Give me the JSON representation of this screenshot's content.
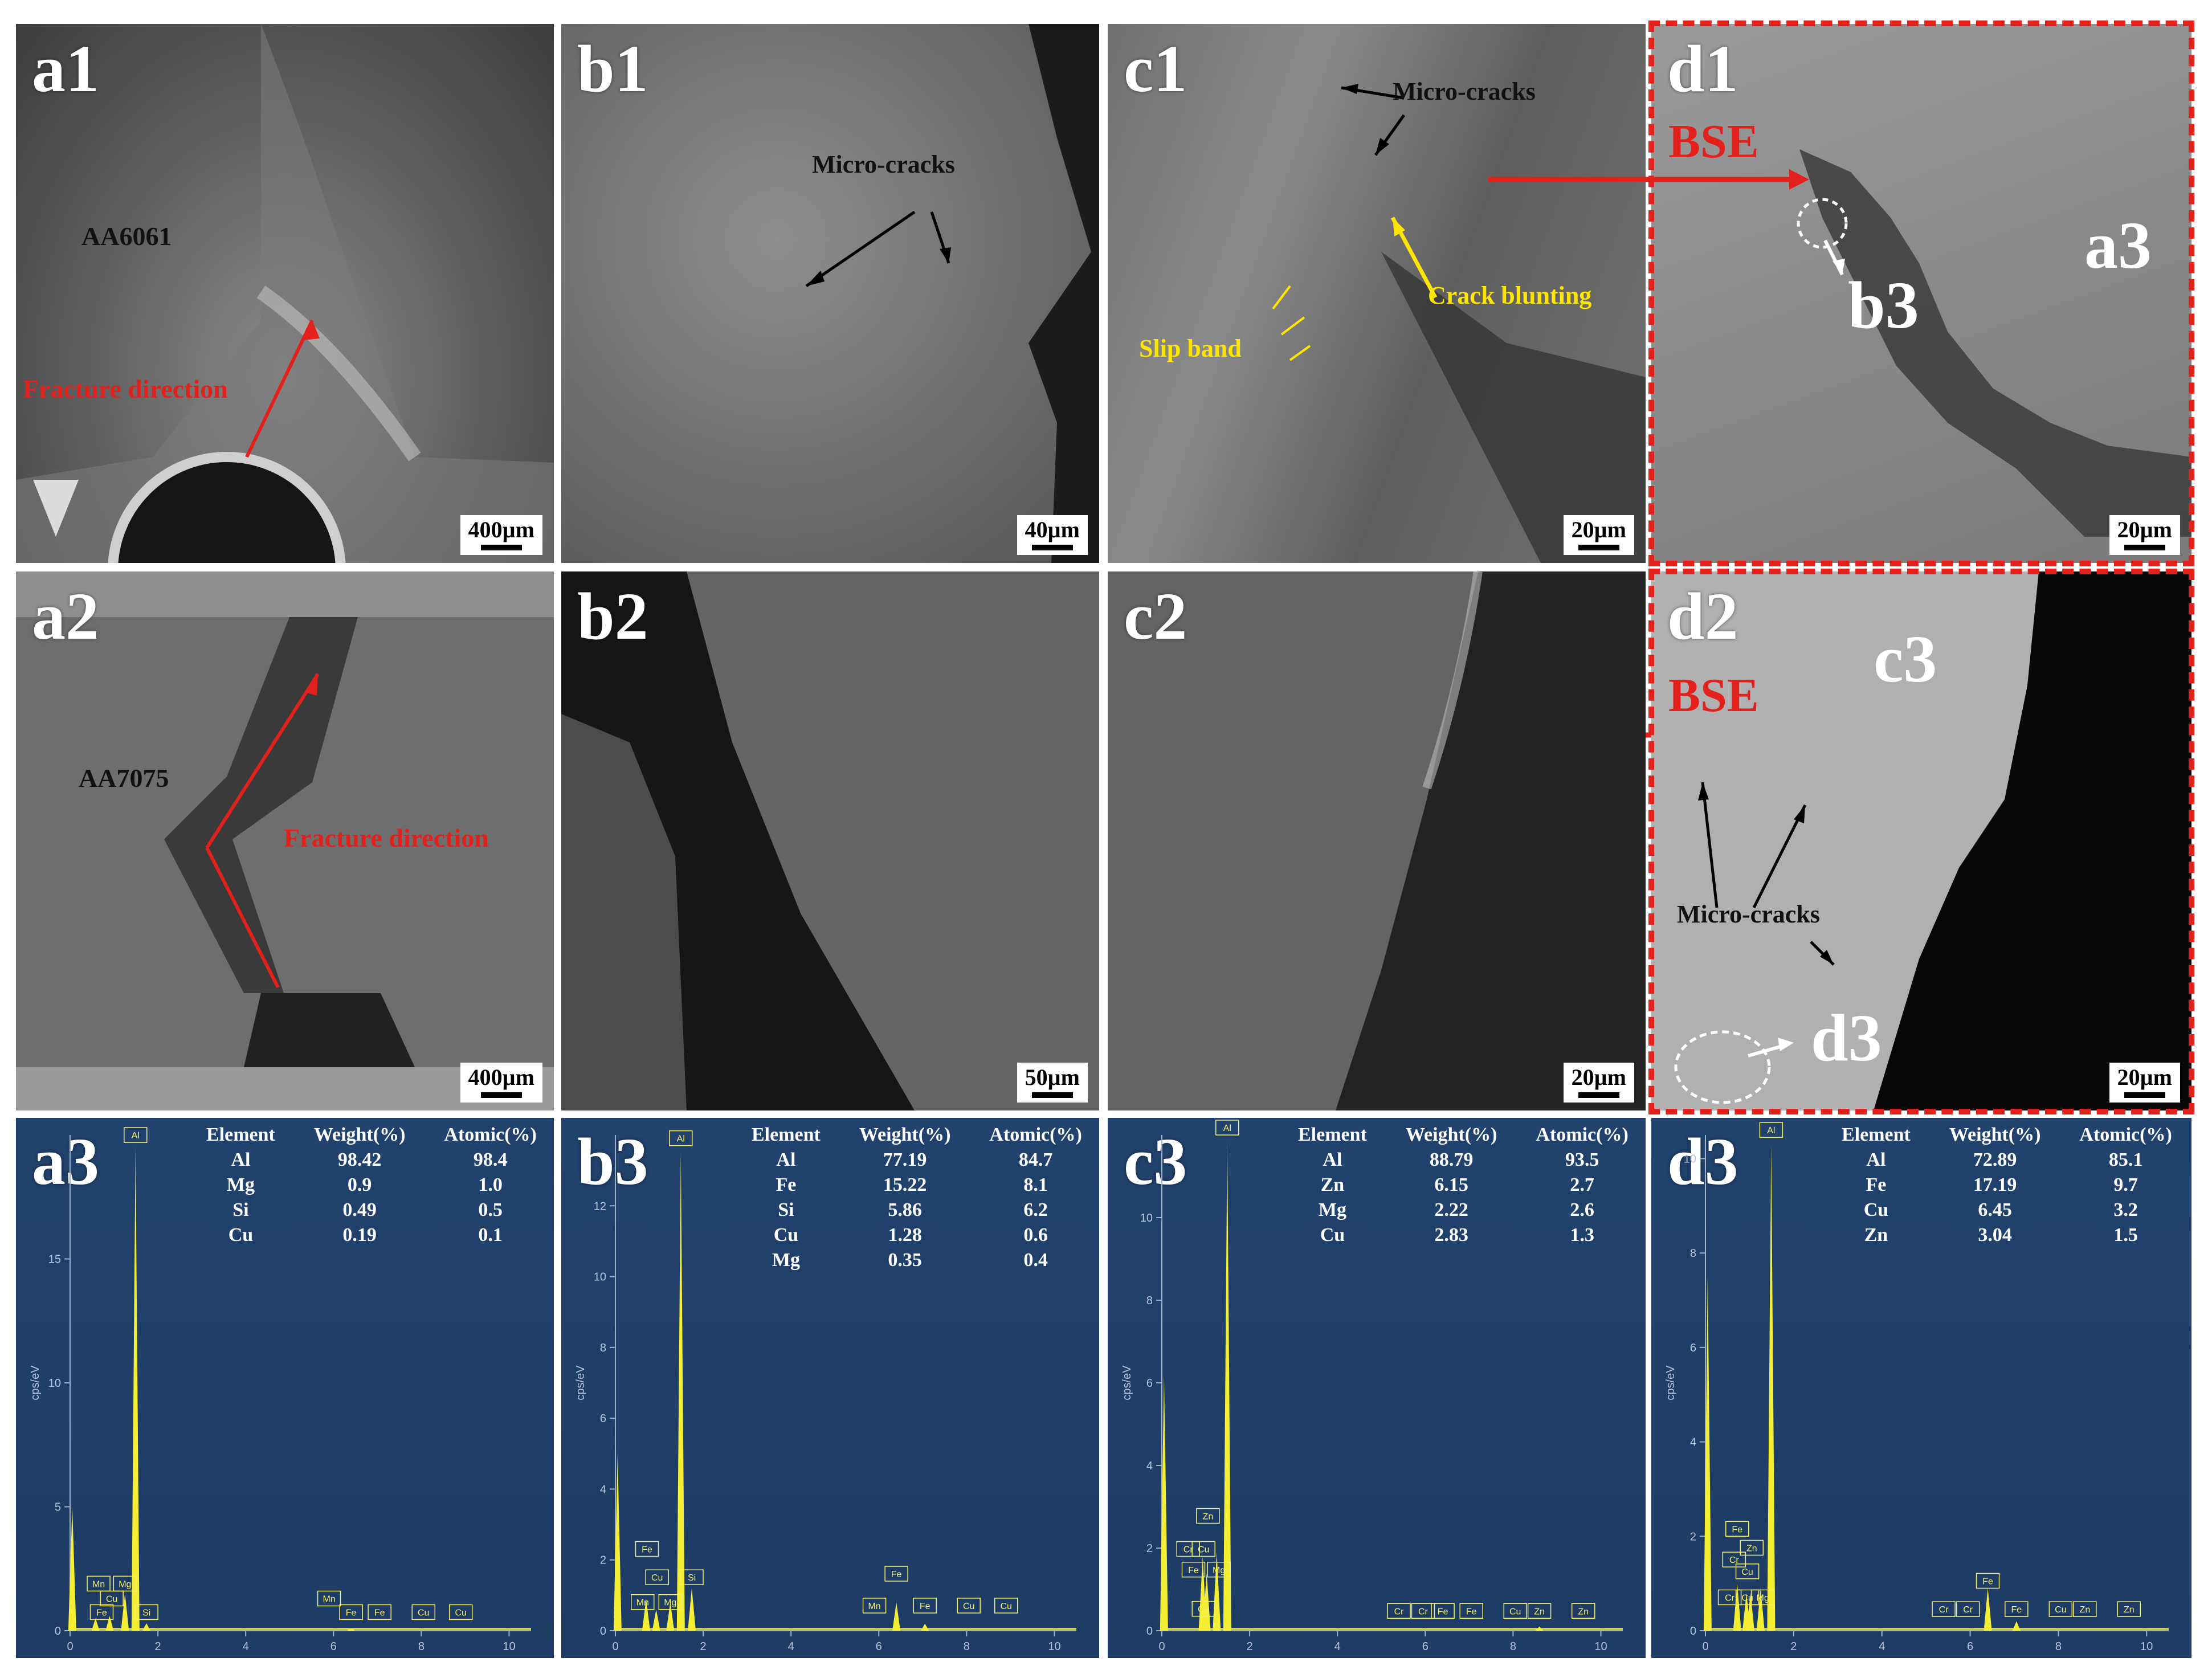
{
  "panels": {
    "a1": {
      "label": "a1",
      "scale": "400µm",
      "material": "AA6061",
      "fracture": "Fracture direction"
    },
    "b1": {
      "label": "b1",
      "scale": "40µm",
      "microcracks": "Micro-cracks"
    },
    "c1": {
      "label": "c1",
      "scale": "20µm",
      "microcracks": "Micro-cracks",
      "slip": "Slip band",
      "blunting": "Crack blunting"
    },
    "d1": {
      "label": "d1",
      "scale": "20µm",
      "bse": "BSE",
      "ref_a3": "a3",
      "ref_b3": "b3"
    },
    "a2": {
      "label": "a2",
      "scale": "400µm",
      "material": "AA7075",
      "fracture": "Fracture direction"
    },
    "b2": {
      "label": "b2",
      "scale": "50µm"
    },
    "c2": {
      "label": "c2",
      "scale": "20µm"
    },
    "d2": {
      "label": "d2",
      "scale": "20µm",
      "bse": "BSE",
      "ref_c3": "c3",
      "ref_d3": "d3",
      "microcracks": "Micro-cracks"
    }
  },
  "eds": [
    {
      "label": "a3",
      "headers": [
        "Element",
        "Weight(%)",
        "Atomic(%)"
      ],
      "rows": [
        [
          "Al",
          "98.42",
          "98.4"
        ],
        [
          "Mg",
          "0.9",
          "1.0"
        ],
        [
          "Si",
          "0.49",
          "0.5"
        ],
        [
          "Cu",
          "0.19",
          "0.1"
        ]
      ],
      "yticks": [
        "15",
        "10",
        "5",
        "0"
      ],
      "ymax": 20,
      "peaks": [
        {
          "x": 0.05,
          "y": 5.0
        },
        {
          "x": 0.58,
          "y": 0.5
        },
        {
          "x": 0.9,
          "y": 0.6
        },
        {
          "x": 1.25,
          "y": 1.5
        },
        {
          "x": 1.49,
          "y": 19.5
        },
        {
          "x": 1.74,
          "y": 0.3
        },
        {
          "x": 6.4,
          "y": 0.1
        }
      ],
      "tags": [
        {
          "t": "Al",
          "x": 1.49,
          "y": 19.7
        },
        {
          "t": "Mn",
          "x": 0.65,
          "y": 1.6
        },
        {
          "t": "Mg",
          "x": 1.25,
          "y": 1.6
        },
        {
          "t": "Cu",
          "x": 0.95,
          "y": 1.0
        },
        {
          "t": "Fe",
          "x": 0.72,
          "y": 0.45
        },
        {
          "t": "Si",
          "x": 1.74,
          "y": 0.45
        },
        {
          "t": "Mn",
          "x": 5.9,
          "y": 1.0
        },
        {
          "t": "Fe",
          "x": 6.4,
          "y": 0.45
        },
        {
          "t": "Fe",
          "x": 7.05,
          "y": 0.45
        },
        {
          "t": "Cu",
          "x": 8.05,
          "y": 0.45
        },
        {
          "t": "Cu",
          "x": 8.9,
          "y": 0.45
        }
      ]
    },
    {
      "label": "b3",
      "headers": [
        "Element",
        "Weight(%)",
        "Atomic(%)"
      ],
      "rows": [
        [
          "Al",
          "77.19",
          "84.7"
        ],
        [
          "Fe",
          "15.22",
          "8.1"
        ],
        [
          "Si",
          "5.86",
          "6.2"
        ],
        [
          "Cu",
          "1.28",
          "0.6"
        ],
        [
          "Mg",
          "0.35",
          "0.4"
        ]
      ],
      "yticks": [
        "12",
        "10",
        "8",
        "6",
        "4",
        "2",
        "0"
      ],
      "ymax": 14,
      "peaks": [
        {
          "x": 0.05,
          "y": 5.0
        },
        {
          "x": 0.7,
          "y": 0.9
        },
        {
          "x": 0.93,
          "y": 0.6
        },
        {
          "x": 1.25,
          "y": 0.8
        },
        {
          "x": 1.49,
          "y": 13.5
        },
        {
          "x": 1.74,
          "y": 1.2
        },
        {
          "x": 6.4,
          "y": 0.8
        },
        {
          "x": 7.05,
          "y": 0.2
        }
      ],
      "tags": [
        {
          "t": "Al",
          "x": 1.49,
          "y": 13.7
        },
        {
          "t": "Fe",
          "x": 0.72,
          "y": 2.1
        },
        {
          "t": "Cu",
          "x": 0.95,
          "y": 1.3
        },
        {
          "t": "Si",
          "x": 1.74,
          "y": 1.3
        },
        {
          "t": "Mn",
          "x": 0.62,
          "y": 0.6
        },
        {
          "t": "Mg",
          "x": 1.25,
          "y": 0.6
        },
        {
          "t": "Mn",
          "x": 5.9,
          "y": 0.5
        },
        {
          "t": "Fe",
          "x": 6.4,
          "y": 1.4
        },
        {
          "t": "Fe",
          "x": 7.05,
          "y": 0.5
        },
        {
          "t": "Cu",
          "x": 8.05,
          "y": 0.5
        },
        {
          "t": "Cu",
          "x": 8.9,
          "y": 0.5
        }
      ]
    },
    {
      "label": "c3",
      "headers": [
        "Element",
        "Weight(%)",
        "Atomic(%)"
      ],
      "rows": [
        [
          "Al",
          "88.79",
          "93.5"
        ],
        [
          "Zn",
          "6.15",
          "2.7"
        ],
        [
          "Mg",
          "2.22",
          "2.6"
        ],
        [
          "Cu",
          "2.83",
          "1.3"
        ]
      ],
      "yticks": [
        "10",
        "8",
        "6",
        "4",
        "2",
        "0"
      ],
      "ymax": 12,
      "peaks": [
        {
          "x": 0.05,
          "y": 6.2
        },
        {
          "x": 0.93,
          "y": 1.8
        },
        {
          "x": 1.02,
          "y": 1.4
        },
        {
          "x": 1.25,
          "y": 1.9
        },
        {
          "x": 1.49,
          "y": 11.8
        },
        {
          "x": 8.6,
          "y": 0.1
        }
      ],
      "tags": [
        {
          "t": "Al",
          "x": 1.49,
          "y": 12.0
        },
        {
          "t": "Zn",
          "x": 1.05,
          "y": 2.6
        },
        {
          "t": "Cr",
          "x": 0.6,
          "y": 1.8
        },
        {
          "t": "Cu",
          "x": 0.95,
          "y": 1.8
        },
        {
          "t": "Fe",
          "x": 0.72,
          "y": 1.3
        },
        {
          "t": "Mg",
          "x": 1.3,
          "y": 1.3
        },
        {
          "t": "Cu",
          "x": 0.95,
          "y": 0.35
        },
        {
          "t": "Cr",
          "x": 5.4,
          "y": 0.3
        },
        {
          "t": "Cr",
          "x": 5.95,
          "y": 0.3
        },
        {
          "t": "Fe",
          "x": 6.4,
          "y": 0.3
        },
        {
          "t": "Fe",
          "x": 7.05,
          "y": 0.3
        },
        {
          "t": "Cu",
          "x": 8.05,
          "y": 0.3
        },
        {
          "t": "Zn",
          "x": 8.6,
          "y": 0.3
        },
        {
          "t": "Zn",
          "x": 9.6,
          "y": 0.3
        }
      ]
    },
    {
      "label": "d3",
      "headers": [
        "Element",
        "Weight(%)",
        "Atomic(%)"
      ],
      "rows": [
        [
          "Al",
          "72.89",
          "85.1"
        ],
        [
          "Fe",
          "17.19",
          "9.7"
        ],
        [
          "Cu",
          "6.45",
          "3.2"
        ],
        [
          "Zn",
          "3.04",
          "1.5"
        ]
      ],
      "yticks": [
        "10",
        "8",
        "6",
        "4",
        "2",
        "0"
      ],
      "ymax": 10.5,
      "peaks": [
        {
          "x": 0.05,
          "y": 7.5
        },
        {
          "x": 0.72,
          "y": 1.0
        },
        {
          "x": 0.93,
          "y": 0.8
        },
        {
          "x": 1.02,
          "y": 0.8
        },
        {
          "x": 1.25,
          "y": 0.9
        },
        {
          "x": 1.49,
          "y": 10.3
        },
        {
          "x": 6.4,
          "y": 0.9
        },
        {
          "x": 7.05,
          "y": 0.2
        }
      ],
      "tags": [
        {
          "t": "Al",
          "x": 1.49,
          "y": 10.45
        },
        {
          "t": "Fe",
          "x": 0.72,
          "y": 2.0
        },
        {
          "t": "Zn",
          "x": 1.05,
          "y": 1.6
        },
        {
          "t": "Cr",
          "x": 0.65,
          "y": 1.35
        },
        {
          "t": "Cu",
          "x": 0.95,
          "y": 1.1
        },
        {
          "t": "Cr",
          "x": 0.55,
          "y": 0.55
        },
        {
          "t": "Cu",
          "x": 0.95,
          "y": 0.55
        },
        {
          "t": "Mg",
          "x": 1.3,
          "y": 0.55
        },
        {
          "t": "Cr",
          "x": 5.4,
          "y": 0.3
        },
        {
          "t": "Cr",
          "x": 5.95,
          "y": 0.3
        },
        {
          "t": "Fe",
          "x": 6.4,
          "y": 0.9
        },
        {
          "t": "Fe",
          "x": 7.05,
          "y": 0.3
        },
        {
          "t": "Cu",
          "x": 8.05,
          "y": 0.3
        },
        {
          "t": "Zn",
          "x": 8.6,
          "y": 0.3
        },
        {
          "t": "Zn",
          "x": 9.6,
          "y": 0.3
        }
      ]
    }
  ],
  "eds_xticks": [
    "0",
    "2",
    "4",
    "6",
    "8",
    "10"
  ],
  "eds_ylabel": "cps/eV",
  "colors": {
    "annot_red": "#e3211c",
    "annot_yellow": "#ffe600",
    "eds_bg": "#21426d",
    "spectrum": "#f5ef33"
  }
}
